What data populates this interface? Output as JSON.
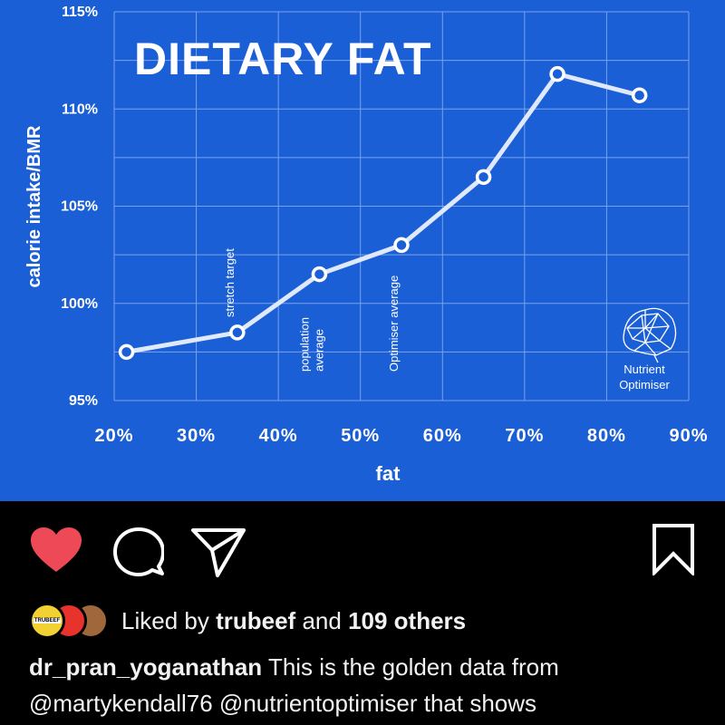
{
  "post": {
    "likes_prefix": "Liked by",
    "liked_by_user": "trubeef",
    "likes_joiner": "and",
    "likes_others": "109 others",
    "caption_user": "dr_pran_yoganathan",
    "caption_line1": "This is the golden data from",
    "caption_line2": "@martykendall76 @nutrientoptimiser that shows"
  },
  "icons": [
    "heart-icon",
    "comment-icon",
    "share-icon",
    "bookmark-icon"
  ],
  "colors": {
    "background": "#1b5fd6",
    "like": "#ed4956",
    "line": "#dfe9fb",
    "feed_bg": "#000000"
  },
  "avatars": [
    {
      "name": "avatar-trubeef",
      "text": "TRUBEEF",
      "color": "#f2d233"
    },
    {
      "name": "avatar-red",
      "text": "",
      "color": "#e8322c"
    },
    {
      "name": "avatar-cow",
      "text": "",
      "color": "#a0673b"
    }
  ],
  "chart_data": {
    "type": "line",
    "title": "DIETARY FAT",
    "xlabel": "fat",
    "ylabel": "calorie intake/BMR",
    "x_ticks": [
      "20%",
      "30%",
      "40%",
      "50%",
      "60%",
      "70%",
      "80%",
      "90%"
    ],
    "y_ticks": [
      "95%",
      "100%",
      "105%",
      "110%",
      "115%"
    ],
    "xlim": [
      20,
      90
    ],
    "ylim": [
      95,
      115
    ],
    "grid": true,
    "series": [
      {
        "x": [
          21.5,
          35,
          45,
          55,
          65,
          74,
          84
        ],
        "y": [
          97.5,
          98.5,
          101.5,
          103,
          106.5,
          111.8,
          110.7
        ]
      }
    ],
    "annotations": [
      {
        "lines": [
          "stretch target"
        ],
        "x": 35
      },
      {
        "lines": [
          "population",
          "average"
        ],
        "x": 45
      },
      {
        "lines": [
          "Optimiser average"
        ],
        "x": 55
      }
    ],
    "logo_text": [
      "Nutrient",
      "Optimiser"
    ]
  }
}
